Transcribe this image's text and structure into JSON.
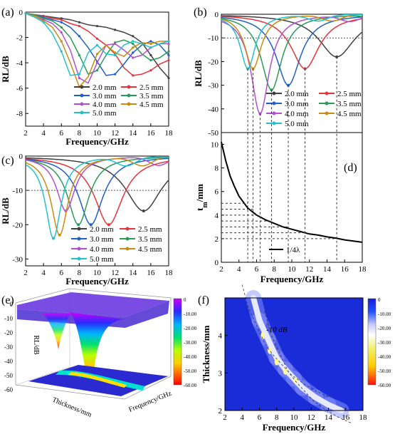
{
  "panels": {
    "a": {
      "label": "(a)"
    },
    "b": {
      "label": "(b)"
    },
    "c": {
      "label": "(c)"
    },
    "d": {
      "label": "(d)"
    },
    "e": {
      "label": "(e)"
    },
    "f": {
      "label": "(f)"
    }
  },
  "colors": {
    "2.0 mm": "#404040",
    "2.5 mm": "#e8323c",
    "3.0 mm": "#1f5fc8",
    "3.5 mm": "#2a9a58",
    "4.0 mm": "#b24fd0",
    "4.5 mm": "#cc8a10",
    "5.0 mm": "#22c1cc"
  },
  "chart_data": [
    {
      "id": "a",
      "type": "line",
      "xlabel": "Frequency/GHz",
      "ylabel": "RL/dB",
      "xlim": [
        2,
        18
      ],
      "ylim": [
        -9,
        0
      ],
      "xticks": [
        "2",
        "4",
        "6",
        "8",
        "10",
        "12",
        "14",
        "16",
        "18"
      ],
      "yticks": [
        "0",
        "-2",
        "-4",
        "-6",
        "-8"
      ],
      "legend": [
        "2.0 mm",
        "2.5 mm",
        "3.0 mm",
        "3.5 mm",
        "4.0 mm",
        "4.5 mm",
        "5.0 mm"
      ],
      "legend_position": "bottom-right",
      "x": [
        2,
        3,
        4,
        5,
        6,
        7,
        8,
        9,
        10,
        11,
        12,
        13,
        14,
        15,
        16,
        17,
        18
      ],
      "series": [
        {
          "name": "2.0 mm",
          "values": [
            -0.1,
            -0.2,
            -0.3,
            -0.4,
            -0.5,
            -0.6,
            -0.8,
            -1.0,
            -1.1,
            -1.2,
            -1.4,
            -1.6,
            -1.9,
            -2.4,
            -3.4,
            -4.4,
            -5.2
          ]
        },
        {
          "name": "2.5 mm",
          "values": [
            -0.1,
            -0.2,
            -0.3,
            -0.5,
            -0.6,
            -0.9,
            -1.1,
            -1.5,
            -2.1,
            -2.6,
            -3.3,
            -4.4,
            -5.0,
            -4.9,
            -4.6,
            -4.1,
            -3.8
          ]
        },
        {
          "name": "3.0 mm",
          "values": [
            -0.1,
            -0.2,
            -0.4,
            -0.6,
            -0.8,
            -1.2,
            -1.9,
            -2.8,
            -3.9,
            -5.0,
            -4.9,
            -4.1,
            -3.2,
            -2.6,
            -2.3,
            -2.6,
            -3.4
          ]
        },
        {
          "name": "3.5 mm",
          "values": [
            -0.1,
            -0.2,
            -0.5,
            -0.7,
            -1.2,
            -2.0,
            -3.4,
            -4.9,
            -4.6,
            -3.4,
            -2.4,
            -2.2,
            -2.5,
            -3.3,
            -3.8,
            -3.6,
            -3.1
          ]
        },
        {
          "name": "4.0 mm",
          "values": [
            -0.1,
            -0.3,
            -0.6,
            -0.9,
            -1.6,
            -3.0,
            -5.2,
            -5.6,
            -4.0,
            -2.6,
            -2.5,
            -3.0,
            -3.6,
            -3.4,
            -2.8,
            -2.5,
            -2.5
          ]
        },
        {
          "name": "4.5 mm",
          "values": [
            -0.1,
            -0.3,
            -0.7,
            -1.2,
            -2.3,
            -4.0,
            -5.9,
            -5.1,
            -3.3,
            -2.6,
            -3.2,
            -3.5,
            -2.8,
            -2.4,
            -2.5,
            -2.3,
            -2.3
          ]
        },
        {
          "name": "5.0 mm",
          "values": [
            -0.1,
            -0.4,
            -0.8,
            -1.7,
            -3.1,
            -5.0,
            -4.9,
            -3.2,
            -2.6,
            -3.3,
            -3.4,
            -2.6,
            -2.3,
            -2.5,
            -2.8,
            -2.5,
            -2.3
          ]
        }
      ]
    },
    {
      "id": "b",
      "type": "line",
      "ylabel": "RL/dB",
      "xlim": [
        2,
        18
      ],
      "ylim": [
        -50,
        0
      ],
      "yticks": [
        "0",
        "-10",
        "-20",
        "-30",
        "-40",
        "-50"
      ],
      "reference_line": -10,
      "legend": [
        "2.0 mm",
        "2.5 mm",
        "3.0 mm",
        "3.5 mm",
        "4.0 mm",
        "4.5 mm",
        "5.0 mm"
      ],
      "legend_position": "bottom-left",
      "dips": [
        {
          "name": "2.0 mm",
          "x": 15.1,
          "y": -18
        },
        {
          "name": "2.5 mm",
          "x": 11.5,
          "y": -23
        },
        {
          "name": "3.0 mm",
          "x": 9.6,
          "y": -30
        },
        {
          "name": "3.5 mm",
          "x": 7.7,
          "y": -32
        },
        {
          "name": "4.0 mm",
          "x": 6.4,
          "y": -42
        },
        {
          "name": "4.5 mm",
          "x": 5.6,
          "y": -23
        },
        {
          "name": "5.0 mm",
          "x": 5.0,
          "y": -23
        }
      ]
    },
    {
      "id": "d",
      "type": "line",
      "xlabel": "Frequency/GHz",
      "ylabel": "t",
      "ylabel_sub": "m",
      "ylabel_unit": "/mm",
      "xlim": [
        2,
        18
      ],
      "ylim": [
        0,
        11
      ],
      "xticks": [
        "2",
        "4",
        "6",
        "8",
        "10",
        "12",
        "14",
        "16",
        "18"
      ],
      "yticks": [
        "0",
        "2",
        "4",
        "6",
        "8",
        "10"
      ],
      "legend": [
        "1/4λ"
      ],
      "legend_position": "bottom-right",
      "x": [
        2,
        2.5,
        3,
        3.5,
        4,
        5,
        6,
        7,
        8,
        9,
        10,
        11,
        12,
        13,
        14,
        15,
        16,
        17,
        18
      ],
      "values": [
        10.2,
        8.6,
        7.3,
        6.4,
        5.6,
        4.6,
        4.0,
        3.6,
        3.3,
        3.0,
        2.8,
        2.6,
        2.4,
        2.3,
        2.15,
        2.05,
        1.9,
        1.8,
        1.7
      ]
    },
    {
      "id": "c",
      "type": "line",
      "xlabel": "Frequency/GHz",
      "ylabel": "RL/dB",
      "xlim": [
        2,
        18
      ],
      "ylim": [
        -32,
        0
      ],
      "xticks": [
        "2",
        "4",
        "6",
        "8",
        "10",
        "12",
        "14",
        "16",
        "18"
      ],
      "yticks": [
        "0",
        "-10",
        "-20",
        "-30"
      ],
      "reference_line": -10,
      "legend": [
        "2.0 mm",
        "2.5 mm",
        "3.0 mm",
        "3.5 mm",
        "4.0 mm",
        "4.5 mm",
        "5.0 mm"
      ],
      "legend_position": "bottom-right",
      "dips": [
        {
          "name": "2.0 mm",
          "x": 15.2,
          "y": -16
        },
        {
          "name": "2.5 mm",
          "x": 11.3,
          "y": -20
        },
        {
          "name": "3.0 mm",
          "x": 9.3,
          "y": -20
        },
        {
          "name": "3.5 mm",
          "x": 7.9,
          "y": -20
        },
        {
          "name": "4.0 mm",
          "x": 6.5,
          "y": -16
        },
        {
          "name": "4.5 mm",
          "x": 5.8,
          "y": -23
        },
        {
          "name": "5.0 mm",
          "x": 5.1,
          "y": -24
        }
      ]
    },
    {
      "id": "e",
      "type": "surface",
      "zlabel": "RL/dB",
      "xlabel": "Frequency/GHz",
      "ylabel": "Thickness/mm",
      "zticks": [
        "0",
        "-10",
        "-20",
        "-30",
        "-40",
        "-50",
        "-60"
      ],
      "colorbar_ticks": [
        "0",
        "-10.00",
        "-20.00",
        "-30.00",
        "-40.00",
        "-50.00",
        "-60.00"
      ]
    },
    {
      "id": "f",
      "type": "heatmap",
      "xlabel": "Frequency/GHz",
      "ylabel": "Thickness/mm",
      "xlim": [
        2,
        18
      ],
      "ylim": [
        2,
        5
      ],
      "xticks": [
        "2",
        "4",
        "6",
        "8",
        "10",
        "12",
        "14",
        "16",
        "18"
      ],
      "yticks": [
        "2",
        "3",
        "4"
      ],
      "annotation": "-10 dB",
      "colorbar_ticks": [
        "0",
        "-10.00",
        "-20.00",
        "-30.00",
        "-40.00",
        "-50.00",
        "-60.00"
      ]
    }
  ]
}
